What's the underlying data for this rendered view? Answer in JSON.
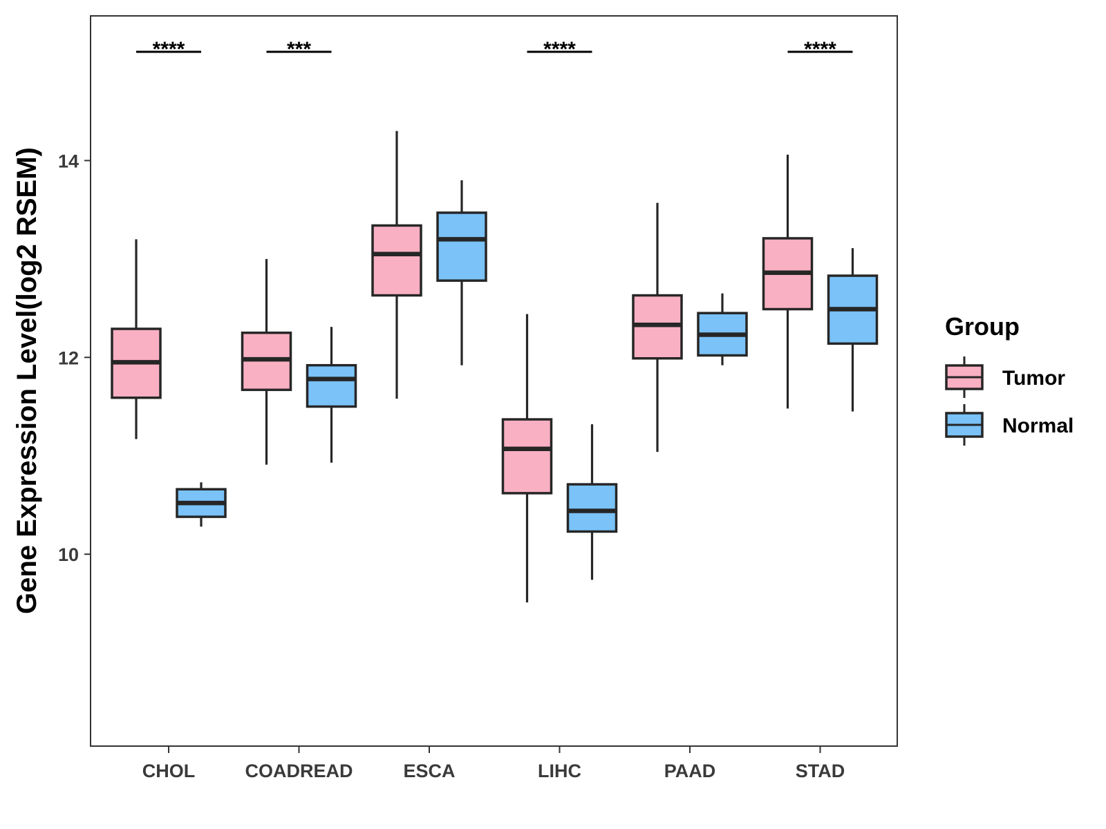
{
  "chart_data": {
    "type": "box",
    "title": "",
    "xlabel": "",
    "ylabel": "Gene Expression Level(log2 RSEM)",
    "ylim": [
      8.05,
      15.47
    ],
    "yticks": [
      10,
      12,
      14
    ],
    "ytick_labels": [
      "10",
      "12",
      "14"
    ],
    "grid": false,
    "categories": [
      "CHOL",
      "COADREAD",
      "ESCA",
      "LIHC",
      "PAAD",
      "STAD"
    ],
    "legend": {
      "title": "Group",
      "position": "right",
      "entries": [
        {
          "name": "Tumor",
          "color": "#f9b0c3"
        },
        {
          "name": "Normal",
          "color": "#7ac2f8"
        }
      ]
    },
    "series": [
      {
        "name": "Tumor",
        "color": "#f9b0c3",
        "boxes": [
          {
            "category": "CHOL",
            "whisker_low": 11.17,
            "q1": 11.59,
            "median": 11.95,
            "q3": 12.29,
            "whisker_high": 13.2
          },
          {
            "category": "COADREAD",
            "whisker_low": 10.91,
            "q1": 11.67,
            "median": 11.98,
            "q3": 12.25,
            "whisker_high": 13.0
          },
          {
            "category": "ESCA",
            "whisker_low": 11.58,
            "q1": 12.63,
            "median": 13.05,
            "q3": 13.34,
            "whisker_high": 14.3
          },
          {
            "category": "LIHC",
            "whisker_low": 9.51,
            "q1": 10.62,
            "median": 11.07,
            "q3": 11.37,
            "whisker_high": 12.44
          },
          {
            "category": "PAAD",
            "whisker_low": 11.04,
            "q1": 11.99,
            "median": 12.33,
            "q3": 12.63,
            "whisker_high": 13.57
          },
          {
            "category": "STAD",
            "whisker_low": 11.48,
            "q1": 12.49,
            "median": 12.86,
            "q3": 13.21,
            "whisker_high": 14.06
          }
        ]
      },
      {
        "name": "Normal",
        "color": "#7ac2f8",
        "boxes": [
          {
            "category": "CHOL",
            "whisker_low": 10.28,
            "q1": 10.38,
            "median": 10.52,
            "q3": 10.66,
            "whisker_high": 10.73
          },
          {
            "category": "COADREAD",
            "whisker_low": 10.93,
            "q1": 11.5,
            "median": 11.78,
            "q3": 11.92,
            "whisker_high": 12.31
          },
          {
            "category": "ESCA",
            "whisker_low": 11.92,
            "q1": 12.78,
            "median": 13.2,
            "q3": 13.47,
            "whisker_high": 13.8
          },
          {
            "category": "LIHC",
            "whisker_low": 9.74,
            "q1": 10.23,
            "median": 10.44,
            "q3": 10.71,
            "whisker_high": 11.32
          },
          {
            "category": "PAAD",
            "whisker_low": 11.92,
            "q1": 12.02,
            "median": 12.23,
            "q3": 12.45,
            "whisker_high": 12.65
          },
          {
            "category": "STAD",
            "whisker_low": 11.45,
            "q1": 12.14,
            "median": 12.49,
            "q3": 12.83,
            "whisker_high": 13.11
          }
        ]
      }
    ],
    "annotations": [
      {
        "category": "CHOL",
        "text": "****"
      },
      {
        "category": "COADREAD",
        "text": "***"
      },
      {
        "category": "LIHC",
        "text": "****"
      },
      {
        "category": "STAD",
        "text": "****"
      }
    ]
  }
}
